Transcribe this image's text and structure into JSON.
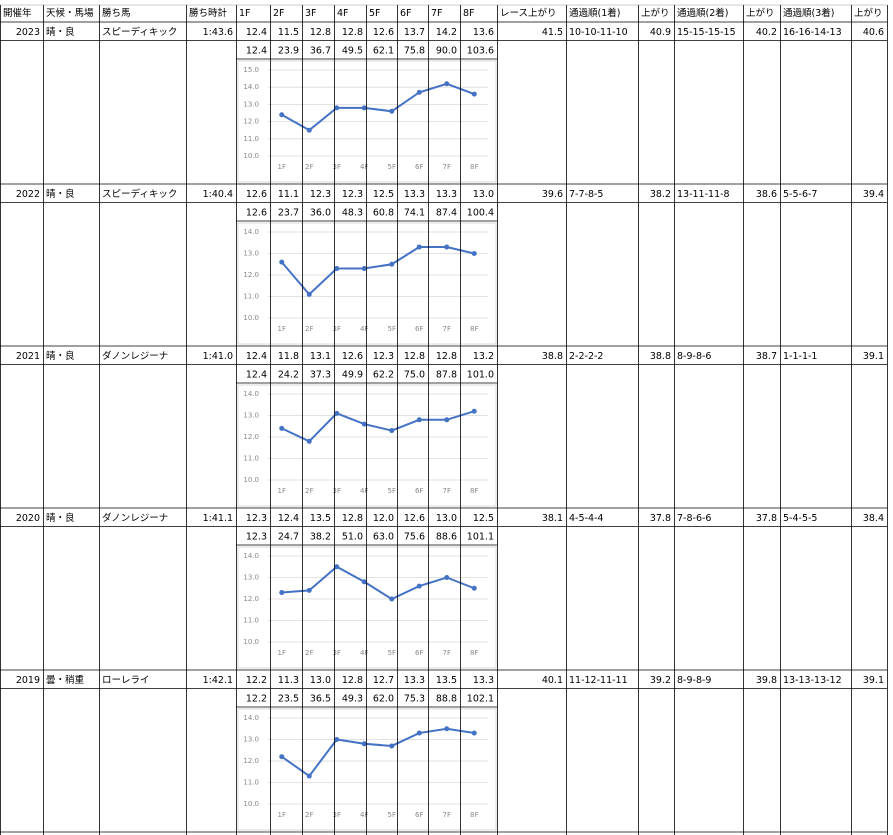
{
  "table": {
    "header": [
      "開催年",
      "天候・馬場",
      "勝ち馬",
      "勝ち時計",
      "1F",
      "2F",
      "3F",
      "4F",
      "5F",
      "6F",
      "7F",
      "8F",
      "レース上がり",
      "通過順(1着)",
      "上がり",
      "通過順(2着)",
      "上がり",
      "通過順(3着)",
      "上がり"
    ],
    "rows": [
      {
        "year": "2023",
        "condition": "晴・良",
        "winner": "スピーディキック",
        "time": "1:43.6",
        "laps": [
          "12.4",
          "11.5",
          "12.8",
          "12.8",
          "12.6",
          "13.7",
          "14.2",
          "13.6"
        ],
        "race_last": "41.5",
        "pass1": "10-10-11-10",
        "last1": "40.9",
        "pass2": "15-15-15-15",
        "last2": "40.2",
        "pass3": "16-16-14-13",
        "last3": "40.6",
        "cumulative": [
          "12.4",
          "23.9",
          "36.7",
          "49.5",
          "62.1",
          "75.8",
          "90.0",
          "103.6"
        ],
        "chart": {
          "type": "line",
          "categories": [
            "1F",
            "2F",
            "3F",
            "4F",
            "5F",
            "6F",
            "7F",
            "8F"
          ],
          "values": [
            12.4,
            11.5,
            12.8,
            12.8,
            12.6,
            13.7,
            14.2,
            13.6
          ],
          "color": "#4472c4",
          "ylim": [
            10,
            15
          ],
          "yticks": [
            {
              "value": 10,
              "label": "10.0"
            },
            {
              "value": 11,
              "label": "11.0"
            },
            {
              "value": 12,
              "label": "12.0"
            },
            {
              "value": 13,
              "label": "13.0"
            },
            {
              "value": 14,
              "label": "14.0"
            },
            {
              "value": 15,
              "label": "15.0"
            }
          ]
        }
      },
      {
        "year": "2022",
        "condition": "晴・良",
        "winner": "スピーディキック",
        "time": "1:40.4",
        "laps": [
          "12.6",
          "11.1",
          "12.3",
          "12.3",
          "12.5",
          "13.3",
          "13.3",
          "13.0"
        ],
        "race_last": "39.6",
        "pass1": "7-7-8-5",
        "last1": "38.2",
        "pass2": "13-11-11-8",
        "last2": "38.6",
        "pass3": "5-5-6-7",
        "last3": "39.4",
        "cumulative": [
          "12.6",
          "23.7",
          "36.0",
          "48.3",
          "60.8",
          "74.1",
          "87.4",
          "100.4"
        ],
        "chart": {
          "type": "line",
          "categories": [
            "1F",
            "2F",
            "3F",
            "4F",
            "5F",
            "6F",
            "7F",
            "8F"
          ],
          "values": [
            12.6,
            11.1,
            12.3,
            12.3,
            12.5,
            13.3,
            13.3,
            13.0
          ],
          "color": "#4472c4",
          "ylim": [
            10,
            14
          ],
          "yticks": [
            {
              "value": 10,
              "label": "10.0"
            },
            {
              "value": 11,
              "label": "11.0"
            },
            {
              "value": 12,
              "label": "12.0"
            },
            {
              "value": 13,
              "label": "13.0"
            },
            {
              "value": 14,
              "label": "14.0"
            }
          ]
        }
      },
      {
        "year": "2021",
        "condition": "晴・良",
        "winner": "ダノンレジーナ",
        "time": "1:41.0",
        "laps": [
          "12.4",
          "11.8",
          "13.1",
          "12.6",
          "12.3",
          "12.8",
          "12.8",
          "13.2"
        ],
        "race_last": "38.8",
        "pass1": "2-2-2-2",
        "last1": "38.8",
        "pass2": "8-9-8-6",
        "last2": "38.7",
        "pass3": "1-1-1-1",
        "last3": "39.1",
        "cumulative": [
          "12.4",
          "24.2",
          "37.3",
          "49.9",
          "62.2",
          "75.0",
          "87.8",
          "101.0"
        ],
        "chart": {
          "type": "line",
          "categories": [
            "1F",
            "2F",
            "3F",
            "4F",
            "5F",
            "6F",
            "7F",
            "8F"
          ],
          "values": [
            12.4,
            11.8,
            13.1,
            12.6,
            12.3,
            12.8,
            12.8,
            13.2
          ],
          "color": "#4472c4",
          "ylim": [
            10,
            14
          ],
          "yticks": [
            {
              "value": 10,
              "label": "10.0"
            },
            {
              "value": 11,
              "label": "11.0"
            },
            {
              "value": 12,
              "label": "12.0"
            },
            {
              "value": 13,
              "label": "13.0"
            },
            {
              "value": 14,
              "label": "14.0"
            }
          ]
        }
      },
      {
        "year": "2020",
        "condition": "晴・良",
        "winner": "ダノンレジーナ",
        "time": "1:41.1",
        "laps": [
          "12.3",
          "12.4",
          "13.5",
          "12.8",
          "12.0",
          "12.6",
          "13.0",
          "12.5"
        ],
        "race_last": "38.1",
        "pass1": "4-5-4-4",
        "last1": "37.8",
        "pass2": "7-8-6-6",
        "last2": "37.8",
        "pass3": "5-4-5-5",
        "last3": "38.4",
        "cumulative": [
          "12.3",
          "24.7",
          "38.2",
          "51.0",
          "63.0",
          "75.6",
          "88.6",
          "101.1"
        ],
        "chart": {
          "type": "line",
          "categories": [
            "1F",
            "2F",
            "3F",
            "4F",
            "5F",
            "6F",
            "7F",
            "8F"
          ],
          "values": [
            12.3,
            12.4,
            13.5,
            12.8,
            12.0,
            12.6,
            13.0,
            12.5
          ],
          "color": "#4472c4",
          "ylim": [
            10,
            14
          ],
          "yticks": [
            {
              "value": 10,
              "label": "10.0"
            },
            {
              "value": 11,
              "label": "11.0"
            },
            {
              "value": 12,
              "label": "12.0"
            },
            {
              "value": 13,
              "label": "13.0"
            },
            {
              "value": 14,
              "label": "14.0"
            }
          ]
        }
      },
      {
        "year": "2019",
        "condition": "曇・稍重",
        "winner": "ローレライ",
        "time": "1:42.1",
        "laps": [
          "12.2",
          "11.3",
          "13.0",
          "12.8",
          "12.7",
          "13.3",
          "13.5",
          "13.3"
        ],
        "race_last": "40.1",
        "pass1": "11-12-11-11",
        "last1": "39.2",
        "pass2": "8-9-8-9",
        "last2": "39.8",
        "pass3": "13-13-13-12",
        "last3": "39.1",
        "cumulative": [
          "12.2",
          "23.5",
          "36.5",
          "49.3",
          "62.0",
          "75.3",
          "88.8",
          "102.1"
        ],
        "chart": {
          "type": "line",
          "categories": [
            "1F",
            "2F",
            "3F",
            "4F",
            "5F",
            "6F",
            "7F",
            "8F"
          ],
          "values": [
            12.2,
            11.3,
            13.0,
            12.8,
            12.7,
            13.3,
            13.5,
            13.3
          ],
          "color": "#4472c4",
          "ylim": [
            10,
            14
          ],
          "yticks": [
            {
              "value": 10,
              "label": "10.0"
            },
            {
              "value": 11,
              "label": "11.0"
            },
            {
              "value": 12,
              "label": "12.0"
            },
            {
              "value": 13,
              "label": "13.0"
            },
            {
              "value": 14,
              "label": "14.0"
            }
          ]
        }
      }
    ]
  }
}
